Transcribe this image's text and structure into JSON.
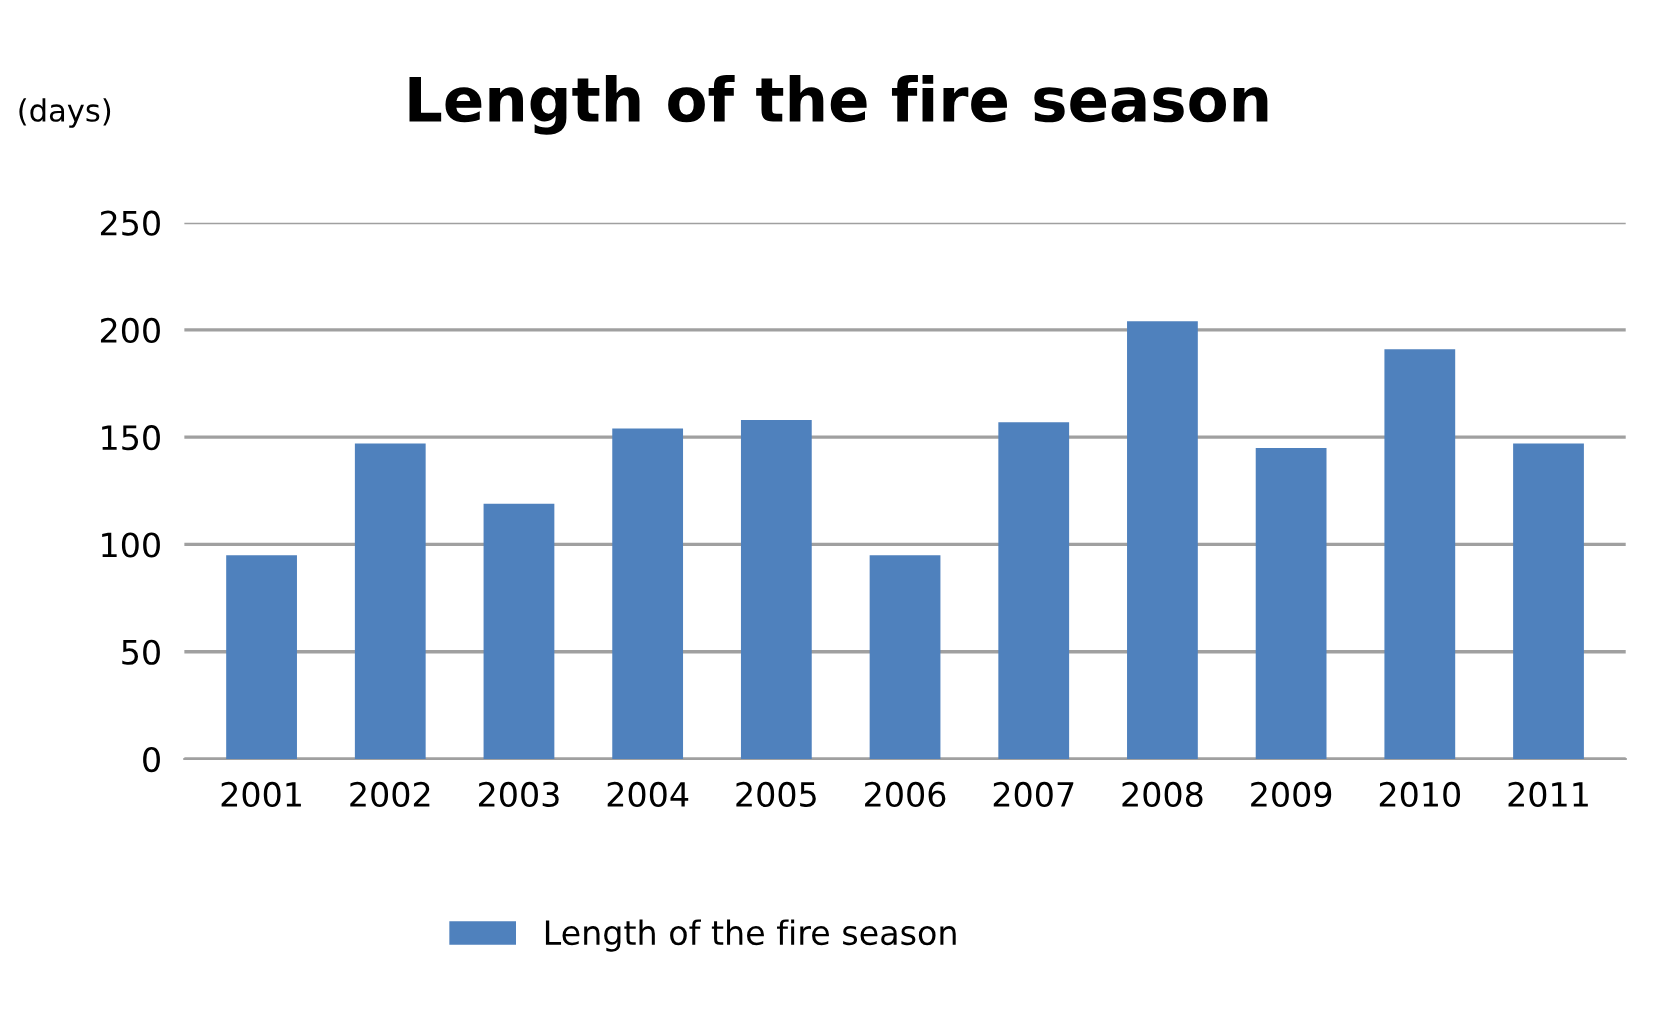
{
  "chart_data": {
    "type": "bar",
    "title": "Length of the fire season",
    "ylabel": "(days)",
    "categories": [
      "2001",
      "2002",
      "2003",
      "2004",
      "2005",
      "2006",
      "2007",
      "2008",
      "2009",
      "2010",
      "2011"
    ],
    "series": [
      {
        "name": "Length of the fire season",
        "color": "#4f81bd",
        "values": [
          95,
          147,
          119,
          154,
          158,
          95,
          157,
          204,
          145,
          191,
          147
        ]
      }
    ],
    "ylim": [
      0,
      250
    ],
    "yticks": [
      0,
      50,
      100,
      150,
      200,
      250
    ],
    "grid": "y",
    "legend": "bottom"
  }
}
